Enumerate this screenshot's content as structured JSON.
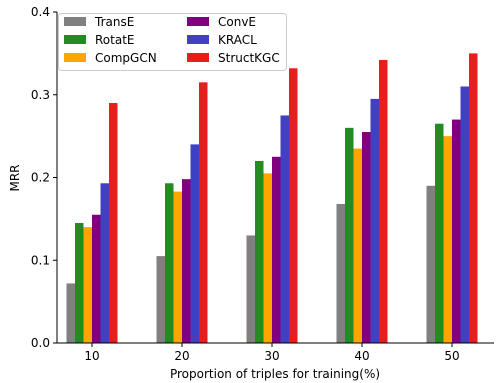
{
  "chart_data": {
    "type": "bar",
    "categories": [
      "10",
      "20",
      "30",
      "40",
      "50"
    ],
    "series": [
      {
        "name": "TransE",
        "color": "#808080",
        "values": [
          0.072,
          0.105,
          0.13,
          0.168,
          0.19
        ]
      },
      {
        "name": "RotatE",
        "color": "#228b22",
        "values": [
          0.145,
          0.193,
          0.22,
          0.26,
          0.265
        ]
      },
      {
        "name": "CompGCN",
        "color": "#ffa500",
        "values": [
          0.14,
          0.183,
          0.205,
          0.235,
          0.25
        ]
      },
      {
        "name": "ConvE",
        "color": "#800080",
        "values": [
          0.155,
          0.198,
          0.225,
          0.255,
          0.27
        ]
      },
      {
        "name": "KRACL",
        "color": "#4040c0",
        "values": [
          0.193,
          0.24,
          0.275,
          0.295,
          0.31
        ]
      },
      {
        "name": "StructKGC",
        "color": "#e61e1e",
        "values": [
          0.29,
          0.315,
          0.332,
          0.342,
          0.35
        ]
      }
    ],
    "xlabel": "Proportion of triples for training(%)",
    "ylabel": "MRR",
    "ylim": [
      0,
      0.4
    ],
    "yticks": [
      "0.0",
      "0.1",
      "0.2",
      "0.3",
      "0.4"
    ],
    "legend": "top-left, 2 columns",
    "grid": false
  }
}
